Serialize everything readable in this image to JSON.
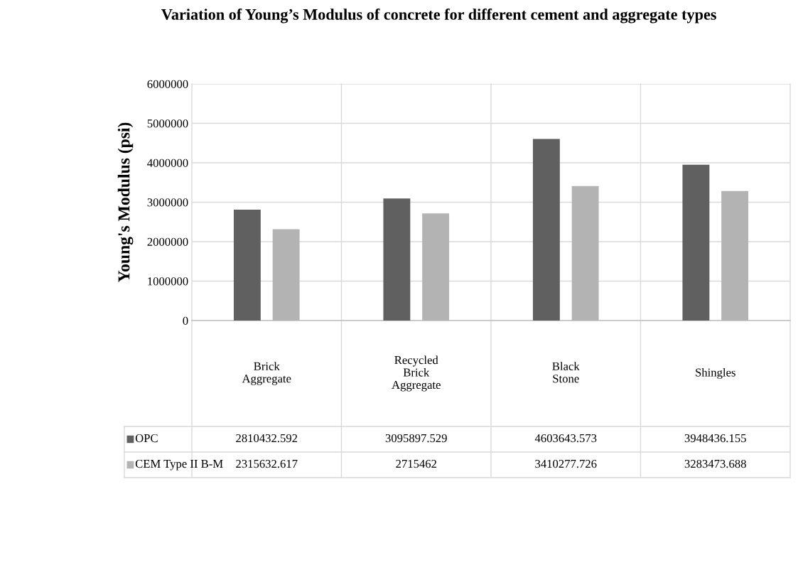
{
  "chart_data": {
    "type": "bar",
    "title": "Variation of Young’s Modulus of concrete for different cement and aggregate types",
    "ylabel": "Young's Modulus (psi)",
    "categories": [
      "Brick Aggregate",
      "Recycled Brick Aggregate",
      "Black Stone",
      "Shingles"
    ],
    "series": [
      {
        "name": "OPC",
        "color": "#606060",
        "values": [
          2810432.592,
          3095897.529,
          4603643.573,
          3948436.155
        ]
      },
      {
        "name": "CEM Type II B-M",
        "color": "#b3b3b3",
        "values": [
          2315632.617,
          2715462,
          3410277.726,
          3283473.688
        ]
      }
    ],
    "ylim": [
      0,
      6000000
    ],
    "yticks": [
      0,
      1000000,
      2000000,
      3000000,
      4000000,
      5000000,
      6000000
    ],
    "grid": true,
    "data_labels": true,
    "legend": "bottom"
  }
}
